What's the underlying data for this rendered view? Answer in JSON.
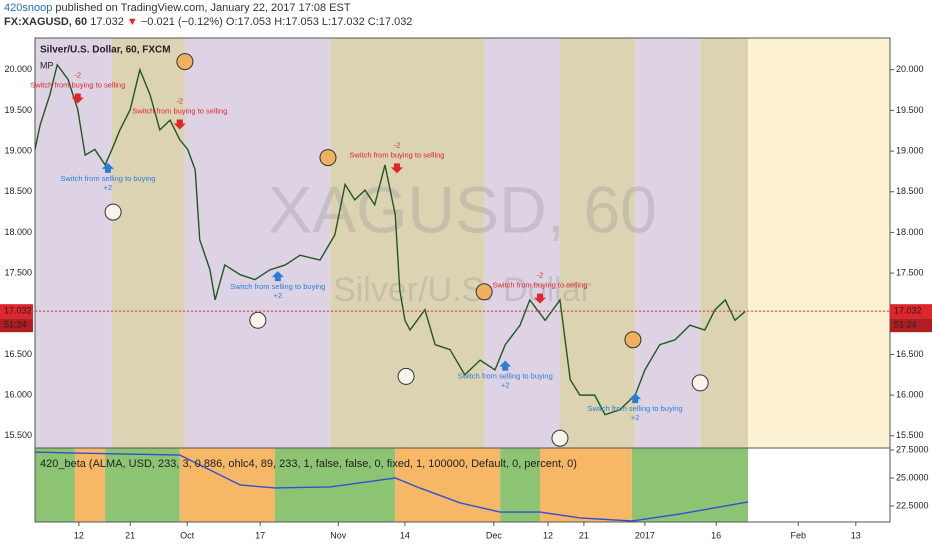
{
  "header": {
    "author": "420snoop",
    "published": "published on TradingView.com, January 22, 2017 17:08 EST",
    "symbol": "FX:XAGUSD, 60",
    "price": "17.032",
    "direction": "▼",
    "change": "−0.021 (−0.12%)",
    "ohlc": "O:17.053 H:17.053 L:17.032 C:17.032"
  },
  "chart_data": [
    {
      "type": "line",
      "title": "Silver/U.S. Dollar, 60, FXCM",
      "subtitle": "MP",
      "watermark": "XAGUSD, 60",
      "watermark_sub": "Silver/U.S. Dollar",
      "color": "#1e5a1e",
      "x": [
        0,
        0.9,
        2.6,
        3.9,
        5.8,
        7.5,
        8.8,
        10.5,
        12.3,
        13.5,
        14.9,
        16.7,
        18.4,
        20.2,
        21.9,
        23.7,
        25.4,
        26.8,
        28.1,
        28.9,
        30.7,
        31.6,
        33.3,
        36,
        38.6,
        41.2,
        43.9,
        46.5,
        50,
        52.6,
        54.4,
        56.1,
        57.9,
        59.6,
        61.4,
        63.2,
        64,
        64.9,
        65.8,
        68.4,
        70.2,
        72.8,
        75.4,
        78.1,
        80.7,
        82.5,
        85.1,
        86.8,
        89.5,
        92.1,
        93.9,
        95.6,
        98.2,
        100,
        102.6,
        105.3,
        107,
        109.6,
        112.3,
        114.9,
        117.5,
        119.3,
        121.1,
        122.8,
        124.6
      ],
      "values": [
        19.02,
        19.32,
        19.69,
        20.06,
        19.88,
        19.51,
        18.95,
        19.02,
        18.83,
        19.02,
        19.26,
        19.51,
        20.0,
        19.69,
        19.26,
        19.38,
        19.14,
        19.02,
        18.77,
        17.91,
        17.54,
        17.17,
        17.6,
        17.48,
        17.42,
        17.54,
        17.6,
        17.72,
        17.66,
        17.97,
        18.59,
        18.4,
        18.52,
        18.34,
        18.83,
        18.22,
        17.29,
        16.92,
        16.8,
        17.05,
        16.62,
        16.56,
        16.25,
        16.43,
        16.31,
        16.62,
        16.86,
        17.17,
        16.92,
        17.17,
        16.19,
        16.0,
        16.0,
        15.76,
        15.82,
        16.0,
        16.31,
        16.62,
        16.68,
        16.86,
        16.8,
        17.05,
        17.17,
        16.92,
        17.03
      ],
      "xlim": [
        0,
        150
      ],
      "xticks": [
        {
          "value": 7.7,
          "label": "12"
        },
        {
          "value": 16.7,
          "label": "21"
        },
        {
          "value": 26.7,
          "label": "Oct"
        },
        {
          "value": 39.5,
          "label": "17"
        },
        {
          "value": 53.2,
          "label": "Nov"
        },
        {
          "value": 64.9,
          "label": "14"
        },
        {
          "value": 80.5,
          "label": "Dec"
        },
        {
          "value": 90,
          "label": "12"
        },
        {
          "value": 96.3,
          "label": "21"
        },
        {
          "value": 107,
          "label": "2017"
        },
        {
          "value": 119.5,
          "label": "16"
        },
        {
          "value": 133.9,
          "label": "Feb"
        },
        {
          "value": 144,
          "label": "13"
        }
      ],
      "ylim": [
        15.35,
        20.39
      ],
      "yticks": [
        {
          "value": 15.5,
          "label": "15.500"
        },
        {
          "value": 16,
          "label": "16.000"
        },
        {
          "value": 16.5,
          "label": "16.500"
        },
        {
          "value": 17,
          "label": "17.000"
        },
        {
          "value": 17.5,
          "label": "17.500"
        },
        {
          "value": 18,
          "label": "18.000"
        },
        {
          "value": 18.5,
          "label": "18.500"
        },
        {
          "value": 19,
          "label": "19.000"
        },
        {
          "value": 19.5,
          "label": "19.500"
        },
        {
          "value": 20,
          "label": "20.000"
        }
      ],
      "last": 17.032,
      "countdown": "51:24",
      "last_color": "#e0262b",
      "bands": [
        {
          "from": 0,
          "to": 13.5,
          "color": "#ddd3e4"
        },
        {
          "from": 13.5,
          "to": 26.3,
          "color": "#dcd3b3"
        },
        {
          "from": 26.3,
          "to": 51.8,
          "color": "#ddd3e4"
        },
        {
          "from": 51.8,
          "to": 64.9,
          "color": "#dcd3b3"
        },
        {
          "from": 64.9,
          "to": 78.9,
          "color": "#dcd3b3"
        },
        {
          "from": 78.9,
          "to": 92.1,
          "color": "#ddd3e4"
        },
        {
          "from": 92.1,
          "to": 105.3,
          "color": "#dcd3b3"
        },
        {
          "from": 105.3,
          "to": 116.7,
          "color": "#ddd3e4"
        },
        {
          "from": 116.7,
          "to": 125.1,
          "color": "#dcd3b3"
        },
        {
          "from": 125.1,
          "to": 150,
          "color": "#fdf1d3"
        }
      ],
      "markers": [
        {
          "x": 26.3,
          "y": 20.1,
          "color": "#f0b060"
        },
        {
          "x": 51.4,
          "y": 18.92,
          "color": "#f0b060"
        },
        {
          "x": 78.8,
          "y": 17.27,
          "color": "#f0b060"
        },
        {
          "x": 104.9,
          "y": 16.68,
          "color": "#f0b060"
        },
        {
          "x": 13.7,
          "y": 18.25,
          "color": "#f8f4ec"
        },
        {
          "x": 39.1,
          "y": 16.92,
          "color": "#f8f4ec"
        },
        {
          "x": 65.1,
          "y": 16.23,
          "color": "#f8f4ec"
        },
        {
          "x": 92.1,
          "y": 15.47,
          "color": "#f8f4ec"
        },
        {
          "x": 116.7,
          "y": 16.15,
          "color": "#f8f4ec"
        }
      ],
      "annotations": [
        {
          "x": 7.5,
          "y": 19.61,
          "text": "Switch from buying to selling",
          "sign": "-2",
          "color": "#e0262b"
        },
        {
          "x": 25.4,
          "y": 19.29,
          "text": "Switch from buying to selling",
          "sign": "-2",
          "color": "#e0262b"
        },
        {
          "x": 63.5,
          "y": 18.75,
          "text": "Switch from buying to selling",
          "sign": "-2",
          "color": "#e0262b"
        },
        {
          "x": 88.6,
          "y": 17.15,
          "text": "Switch from buying to selling",
          "sign": "-2",
          "color": "#e0262b"
        },
        {
          "x": 12.8,
          "y": 18.83,
          "text": "Switch from selling to buying",
          "sign": "+2",
          "color": "#2a7fd4"
        },
        {
          "x": 42.6,
          "y": 17.5,
          "text": "Switch from selling to buying",
          "sign": "+2",
          "color": "#2a7fd4"
        },
        {
          "x": 82.5,
          "y": 16.4,
          "text": "Switch from selling to buying",
          "sign": "+2",
          "color": "#2a7fd4"
        },
        {
          "x": 105.3,
          "y": 16.0,
          "text": "Switch from selling to buying",
          "sign": "+2",
          "color": "#2a7fd4"
        }
      ]
    },
    {
      "type": "line",
      "title": "420_beta (ALMA, USD, 233, 3, 0.886, ohlc4, 89, 233, 1, false, false, 0, fixed, 1, 100000, Default, 0, percent, 0)",
      "color": "#3050d0",
      "x": [
        0,
        7,
        25.4,
        30.7,
        36,
        42.1,
        51.8,
        63.2,
        67.5,
        74.6,
        81.6,
        88.6,
        95.6,
        104.7,
        113.2,
        125.1
      ],
      "values": [
        27.32,
        27.23,
        27.05,
        25.71,
        24.38,
        24.11,
        24.2,
        25.0,
        24.11,
        22.77,
        21.96,
        21.96,
        21.43,
        21.16,
        21.79,
        22.86
      ],
      "xlim": [
        0,
        150
      ],
      "ylim": [
        21.07,
        27.68
      ],
      "yticks": [
        {
          "value": 22.5,
          "label": "22.5000"
        },
        {
          "value": 25,
          "label": "25.0000"
        },
        {
          "value": 27.5,
          "label": "27.5000"
        }
      ],
      "bands": [
        {
          "from": 0,
          "to": 7,
          "color": "#8cc474"
        },
        {
          "from": 7,
          "to": 12.3,
          "color": "#f6b766"
        },
        {
          "from": 12.3,
          "to": 25.4,
          "color": "#8cc474"
        },
        {
          "from": 25.4,
          "to": 42.1,
          "color": "#f6b766"
        },
        {
          "from": 42.1,
          "to": 63.2,
          "color": "#8cc474"
        },
        {
          "from": 63.2,
          "to": 81.6,
          "color": "#f6b766"
        },
        {
          "from": 81.6,
          "to": 88.6,
          "color": "#8cc474"
        },
        {
          "from": 88.6,
          "to": 104.7,
          "color": "#f6b766"
        },
        {
          "from": 104.7,
          "to": 125.1,
          "color": "#8cc474"
        }
      ]
    }
  ]
}
